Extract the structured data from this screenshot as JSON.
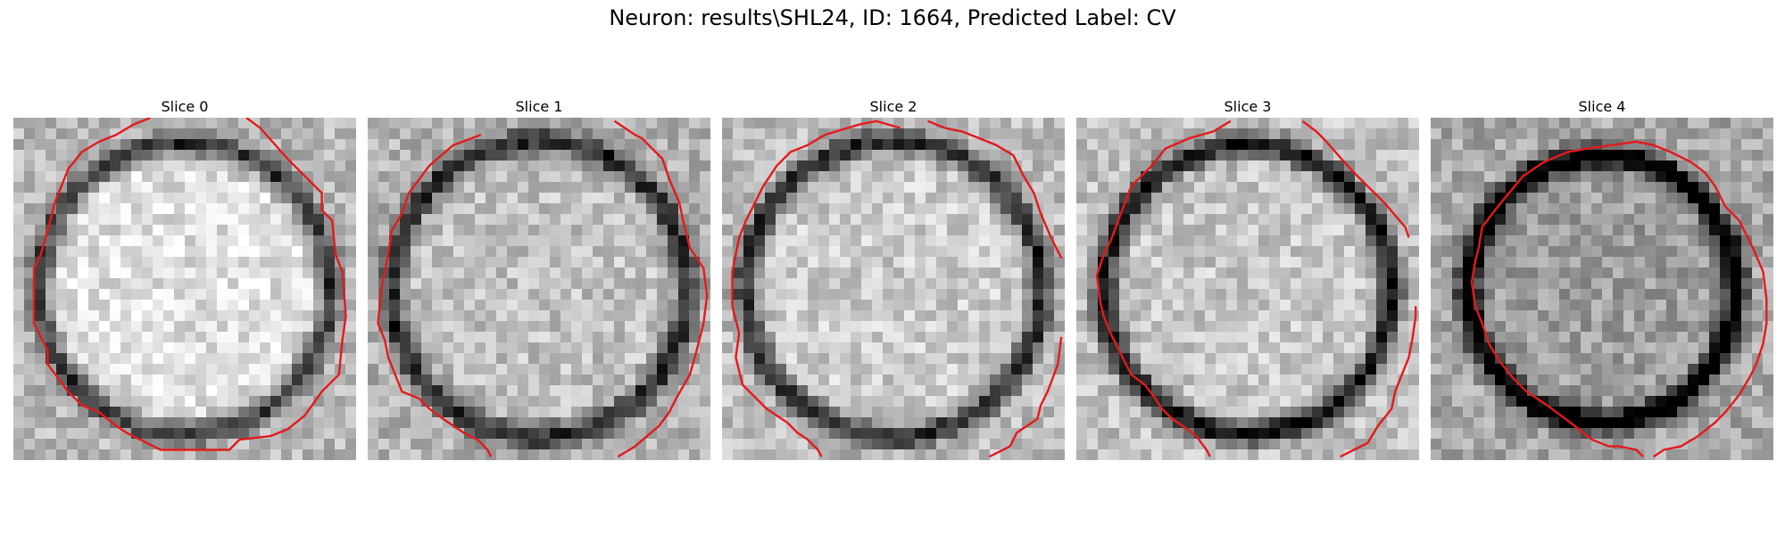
{
  "figure": {
    "title": "Neuron: results\\SHL24, ID: 1664, Predicted Label: CV"
  },
  "colors": {
    "contour": "#e41a1c"
  },
  "panels": [
    {
      "title": "Slice 0",
      "seed": 11,
      "cell": {
        "ring_radius": 0.84,
        "ring_darkness": 0.55,
        "inner_brightness": 0.88,
        "outer_brightness": 0.72
      },
      "contour": [
        [
          0.4,
          0.0
        ],
        [
          0.35,
          0.02
        ],
        [
          0.3,
          0.05
        ],
        [
          0.25,
          0.07
        ],
        [
          0.2,
          0.1
        ],
        [
          0.16,
          0.15
        ],
        [
          0.14,
          0.2
        ],
        [
          0.12,
          0.25
        ],
        [
          0.1,
          0.33
        ],
        [
          0.08,
          0.4
        ],
        [
          0.06,
          0.44
        ],
        [
          0.06,
          0.5
        ],
        [
          0.06,
          0.6
        ],
        [
          0.08,
          0.64
        ],
        [
          0.1,
          0.68
        ],
        [
          0.1,
          0.72
        ],
        [
          0.13,
          0.76
        ],
        [
          0.16,
          0.8
        ],
        [
          0.2,
          0.84
        ],
        [
          0.25,
          0.86
        ],
        [
          0.3,
          0.9
        ],
        [
          0.33,
          0.92
        ],
        [
          0.43,
          0.97
        ],
        [
          0.55,
          0.97
        ],
        [
          0.63,
          0.97
        ],
        [
          0.66,
          0.94
        ],
        [
          0.75,
          0.93
        ],
        [
          0.8,
          0.91
        ],
        [
          0.85,
          0.87
        ],
        [
          0.9,
          0.8
        ],
        [
          0.95,
          0.75
        ],
        [
          0.96,
          0.65
        ],
        [
          0.97,
          0.58
        ],
        [
          0.96,
          0.45
        ],
        [
          0.94,
          0.4
        ],
        [
          0.93,
          0.3
        ],
        [
          0.9,
          0.27
        ],
        [
          0.9,
          0.22
        ],
        [
          0.85,
          0.17
        ],
        [
          0.8,
          0.12
        ],
        [
          0.72,
          0.03
        ],
        [
          0.68,
          0.0
        ]
      ]
    },
    {
      "title": "Slice 1",
      "seed": 23,
      "cell": {
        "ring_radius": 0.86,
        "ring_darkness": 0.6,
        "inner_brightness": 0.76,
        "outer_brightness": 0.7
      },
      "contour": [
        [
          0.33,
          0.05
        ],
        [
          0.25,
          0.08
        ],
        [
          0.18,
          0.14
        ],
        [
          0.12,
          0.22
        ],
        [
          0.1,
          0.28
        ],
        [
          0.07,
          0.33
        ],
        [
          0.06,
          0.4
        ],
        [
          0.05,
          0.45
        ],
        [
          0.04,
          0.5
        ],
        [
          0.03,
          0.6
        ],
        [
          0.05,
          0.65
        ],
        [
          0.06,
          0.7
        ],
        [
          0.08,
          0.75
        ],
        [
          0.1,
          0.8
        ],
        [
          0.15,
          0.82
        ],
        [
          0.18,
          0.85
        ],
        [
          0.22,
          0.88
        ],
        [
          0.28,
          0.92
        ],
        [
          0.32,
          0.94
        ],
        [
          0.35,
          0.97
        ],
        [
          0.36,
          0.99
        ],
        null,
        [
          0.73,
          0.99
        ],
        [
          0.78,
          0.96
        ],
        [
          0.85,
          0.9
        ],
        [
          0.88,
          0.86
        ],
        [
          0.9,
          0.82
        ],
        [
          0.94,
          0.75
        ],
        [
          0.96,
          0.68
        ],
        [
          0.98,
          0.6
        ],
        [
          0.99,
          0.52
        ],
        [
          0.98,
          0.44
        ],
        [
          0.94,
          0.38
        ],
        [
          0.92,
          0.3
        ],
        [
          0.91,
          0.25
        ],
        [
          0.88,
          0.18
        ],
        [
          0.86,
          0.12
        ],
        [
          0.8,
          0.06
        ],
        [
          0.78,
          0.05
        ],
        [
          0.72,
          0.01
        ]
      ]
    },
    {
      "title": "Slice 2",
      "seed": 37,
      "cell": {
        "ring_radius": 0.86,
        "ring_darkness": 0.62,
        "inner_brightness": 0.8,
        "outer_brightness": 0.74
      },
      "contour": [
        [
          0.16,
          0.14
        ],
        [
          0.12,
          0.2
        ],
        [
          0.07,
          0.3
        ],
        [
          0.05,
          0.35
        ],
        [
          0.03,
          0.45
        ],
        [
          0.03,
          0.55
        ],
        [
          0.05,
          0.63
        ],
        [
          0.04,
          0.7
        ],
        [
          0.06,
          0.78
        ],
        [
          0.1,
          0.82
        ],
        [
          0.13,
          0.85
        ],
        [
          0.16,
          0.87
        ],
        [
          0.19,
          0.89
        ],
        [
          0.22,
          0.92
        ],
        [
          0.25,
          0.94
        ],
        [
          0.28,
          0.97
        ],
        [
          0.29,
          0.99
        ],
        null,
        [
          0.78,
          0.99
        ],
        [
          0.84,
          0.96
        ],
        [
          0.86,
          0.92
        ],
        [
          0.92,
          0.88
        ],
        [
          0.93,
          0.84
        ],
        [
          0.95,
          0.8
        ],
        [
          0.98,
          0.72
        ],
        [
          0.99,
          0.64
        ],
        null,
        [
          0.99,
          0.41
        ],
        [
          0.96,
          0.35
        ],
        [
          0.93,
          0.28
        ],
        [
          0.91,
          0.22
        ],
        [
          0.88,
          0.17
        ],
        [
          0.85,
          0.11
        ],
        [
          0.8,
          0.08
        ],
        [
          0.75,
          0.06
        ],
        [
          0.7,
          0.04
        ],
        [
          0.65,
          0.03
        ],
        [
          0.6,
          0.01
        ],
        null,
        [
          0.52,
          0.03
        ],
        [
          0.45,
          0.01
        ],
        [
          0.4,
          0.02
        ],
        [
          0.3,
          0.05
        ],
        [
          0.25,
          0.08
        ],
        [
          0.2,
          0.1
        ],
        [
          0.16,
          0.14
        ]
      ]
    },
    {
      "title": "Slice 3",
      "seed": 51,
      "cell": {
        "ring_radius": 0.84,
        "ring_darkness": 0.72,
        "inner_brightness": 0.78,
        "outer_brightness": 0.76
      },
      "contour": [
        [
          0.45,
          0.01
        ],
        [
          0.4,
          0.04
        ],
        [
          0.33,
          0.06
        ],
        [
          0.26,
          0.09
        ],
        [
          0.22,
          0.14
        ],
        [
          0.16,
          0.2
        ],
        [
          0.13,
          0.28
        ],
        [
          0.1,
          0.36
        ],
        [
          0.08,
          0.4
        ],
        [
          0.06,
          0.46
        ],
        [
          0.07,
          0.54
        ],
        [
          0.08,
          0.58
        ],
        [
          0.1,
          0.63
        ],
        [
          0.13,
          0.69
        ],
        [
          0.16,
          0.75
        ],
        [
          0.2,
          0.78
        ],
        [
          0.23,
          0.82
        ],
        [
          0.25,
          0.85
        ],
        [
          0.28,
          0.88
        ],
        [
          0.31,
          0.9
        ],
        [
          0.35,
          0.93
        ],
        [
          0.38,
          0.97
        ],
        [
          0.39,
          0.99
        ],
        null,
        [
          0.77,
          0.99
        ],
        [
          0.85,
          0.95
        ],
        [
          0.88,
          0.9
        ],
        [
          0.92,
          0.85
        ],
        [
          0.93,
          0.8
        ],
        [
          0.95,
          0.75
        ],
        [
          0.97,
          0.7
        ],
        [
          0.98,
          0.65
        ],
        [
          0.99,
          0.58
        ],
        [
          0.99,
          0.55
        ],
        null,
        [
          0.97,
          0.35
        ],
        [
          0.96,
          0.32
        ],
        [
          0.9,
          0.25
        ],
        [
          0.8,
          0.15
        ],
        [
          0.72,
          0.06
        ],
        [
          0.7,
          0.04
        ],
        [
          0.66,
          0.01
        ]
      ]
    },
    {
      "title": "Slice 4",
      "seed": 67,
      "cell": {
        "ring_radius": 0.78,
        "ring_darkness": 0.78,
        "inner_brightness": 0.62,
        "outer_brightness": 0.66
      },
      "contour": [
        [
          0.53,
          0.08
        ],
        [
          0.46,
          0.09
        ],
        [
          0.4,
          0.1
        ],
        [
          0.33,
          0.13
        ],
        [
          0.27,
          0.17
        ],
        [
          0.22,
          0.23
        ],
        [
          0.18,
          0.28
        ],
        [
          0.15,
          0.32
        ],
        [
          0.14,
          0.38
        ],
        [
          0.13,
          0.42
        ],
        [
          0.12,
          0.48
        ],
        [
          0.13,
          0.55
        ],
        [
          0.15,
          0.6
        ],
        [
          0.17,
          0.66
        ],
        [
          0.2,
          0.71
        ],
        [
          0.24,
          0.76
        ],
        [
          0.28,
          0.8
        ],
        [
          0.34,
          0.84
        ],
        [
          0.38,
          0.87
        ],
        [
          0.42,
          0.9
        ],
        [
          0.47,
          0.94
        ],
        [
          0.52,
          0.96
        ],
        [
          0.55,
          0.96
        ],
        [
          0.6,
          0.97
        ],
        [
          0.62,
          0.99
        ],
        null,
        [
          0.65,
          0.99
        ],
        [
          0.68,
          0.97
        ],
        [
          0.73,
          0.96
        ],
        [
          0.78,
          0.93
        ],
        [
          0.83,
          0.89
        ],
        [
          0.86,
          0.86
        ],
        [
          0.9,
          0.81
        ],
        [
          0.93,
          0.76
        ],
        [
          0.95,
          0.72
        ],
        [
          0.97,
          0.66
        ],
        [
          0.98,
          0.6
        ],
        [
          0.98,
          0.53
        ],
        [
          0.97,
          0.45
        ],
        [
          0.94,
          0.38
        ],
        [
          0.9,
          0.3
        ],
        [
          0.86,
          0.26
        ],
        [
          0.83,
          0.2
        ],
        [
          0.8,
          0.16
        ],
        [
          0.76,
          0.13
        ],
        [
          0.7,
          0.1
        ],
        [
          0.65,
          0.08
        ],
        [
          0.6,
          0.07
        ],
        [
          0.53,
          0.08
        ]
      ]
    }
  ]
}
